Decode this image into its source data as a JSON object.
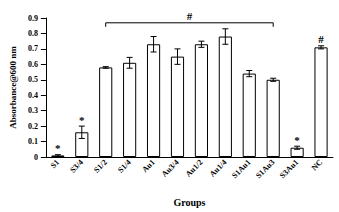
{
  "chart_data": {
    "type": "bar",
    "x_label": "Groups",
    "y_label": "Absorbance@600 nm",
    "categories": [
      "S1",
      "S3/4",
      "S1/2",
      "S1/4",
      "Au1",
      "Au3/4",
      "Au1/2",
      "Au1/4",
      "S1Au1",
      "S1Au3",
      "S3Au1",
      "NC"
    ],
    "values": [
      0.01,
      0.16,
      0.58,
      0.61,
      0.73,
      0.65,
      0.73,
      0.78,
      0.54,
      0.5,
      0.06,
      0.71
    ],
    "errors": [
      0.005,
      0.04,
      0.005,
      0.035,
      0.05,
      0.05,
      0.02,
      0.05,
      0.02,
      0.01,
      0.01,
      0.01
    ],
    "color": "#ffffff",
    "ylim": [
      0,
      0.9
    ],
    "yticks": [
      0,
      0.1,
      0.2,
      0.3,
      0.4,
      0.5,
      0.6,
      0.7,
      0.8,
      0.9
    ],
    "grid": false,
    "annotations": [
      {
        "text": "*",
        "category": "S1"
      },
      {
        "text": "*",
        "category": "S3/4"
      },
      {
        "text": "*",
        "category": "S3Au1"
      },
      {
        "text": "#",
        "category": "NC"
      },
      {
        "text": "#",
        "from": "S1/2",
        "to": "S1Au3"
      }
    ]
  }
}
